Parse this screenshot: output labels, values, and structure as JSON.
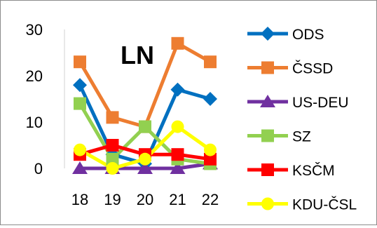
{
  "chart_data": {
    "type": "line",
    "title": "LN",
    "categories": [
      "18",
      "19",
      "20",
      "21",
      "22"
    ],
    "ylim": [
      0,
      30
    ],
    "yticks": [
      "0",
      "10",
      "20",
      "30"
    ],
    "grid": false,
    "legend_position": "right",
    "series": [
      {
        "name": "ODS",
        "color": "#0070C0",
        "marker": "diamond",
        "values": [
          18,
          3,
          1,
          17,
          15
        ]
      },
      {
        "name": "ČSSD",
        "color": "#ED7D31",
        "marker": "square",
        "values": [
          23,
          11,
          9,
          27,
          23
        ]
      },
      {
        "name": "US-DEU",
        "color": "#7030A0",
        "marker": "triangle",
        "values": [
          0,
          0,
          0,
          0,
          1
        ]
      },
      {
        "name": "SZ",
        "color": "#92D050",
        "marker": "square",
        "values": [
          14,
          2,
          9,
          2,
          1
        ]
      },
      {
        "name": "KSČM",
        "color": "#FF0000",
        "marker": "square",
        "values": [
          3,
          5,
          3,
          3,
          2
        ]
      },
      {
        "name": "KDU-ČSL",
        "color": "#FFFF00",
        "marker": "circle",
        "values": [
          4,
          0,
          2,
          9,
          4
        ]
      }
    ]
  }
}
